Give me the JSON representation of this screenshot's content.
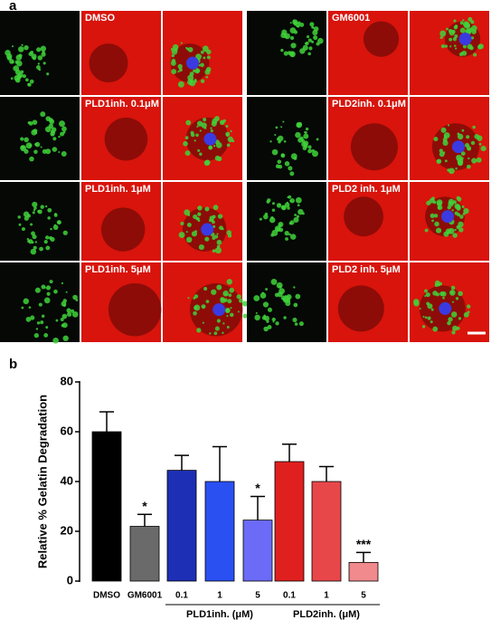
{
  "panel_a": {
    "label": "a",
    "left": [
      "DMSO",
      "PLD1inh. 0.1μM",
      "PLD1inh. 1μM",
      "PLD1inh. 5μM"
    ],
    "right": [
      "GM6001",
      "PLD2inh. 0.1μM",
      "PLD2 inh. 1μM",
      "PLD2 inh. 5μM"
    ]
  },
  "panel_b": {
    "label": "b"
  },
  "chart_data": {
    "type": "bar",
    "y_label": "Relative % Gelatin Degradation",
    "categories": [
      "DMSO",
      "GM6001",
      "0.1",
      "1",
      "5",
      "0.1",
      "1",
      "5"
    ],
    "values": [
      60,
      22,
      44.5,
      40,
      24.5,
      48,
      40,
      7.5
    ],
    "errors": [
      8,
      4.8,
      6,
      14,
      9.5,
      7,
      6,
      4
    ],
    "colors": [
      "#000000",
      "#6a6a6a",
      "#1d2fb5",
      "#2a50f2",
      "#6b6bf7",
      "#e0201f",
      "#e8474a",
      "#f08a8c"
    ],
    "significance": [
      null,
      "*",
      null,
      null,
      "*",
      null,
      null,
      "***"
    ],
    "group_labels": [
      "PLD1inh. (μM)",
      "PLD2inh. (μM)"
    ],
    "ylim": [
      0,
      80
    ],
    "yticks": [
      0,
      20,
      40,
      60,
      80
    ]
  }
}
